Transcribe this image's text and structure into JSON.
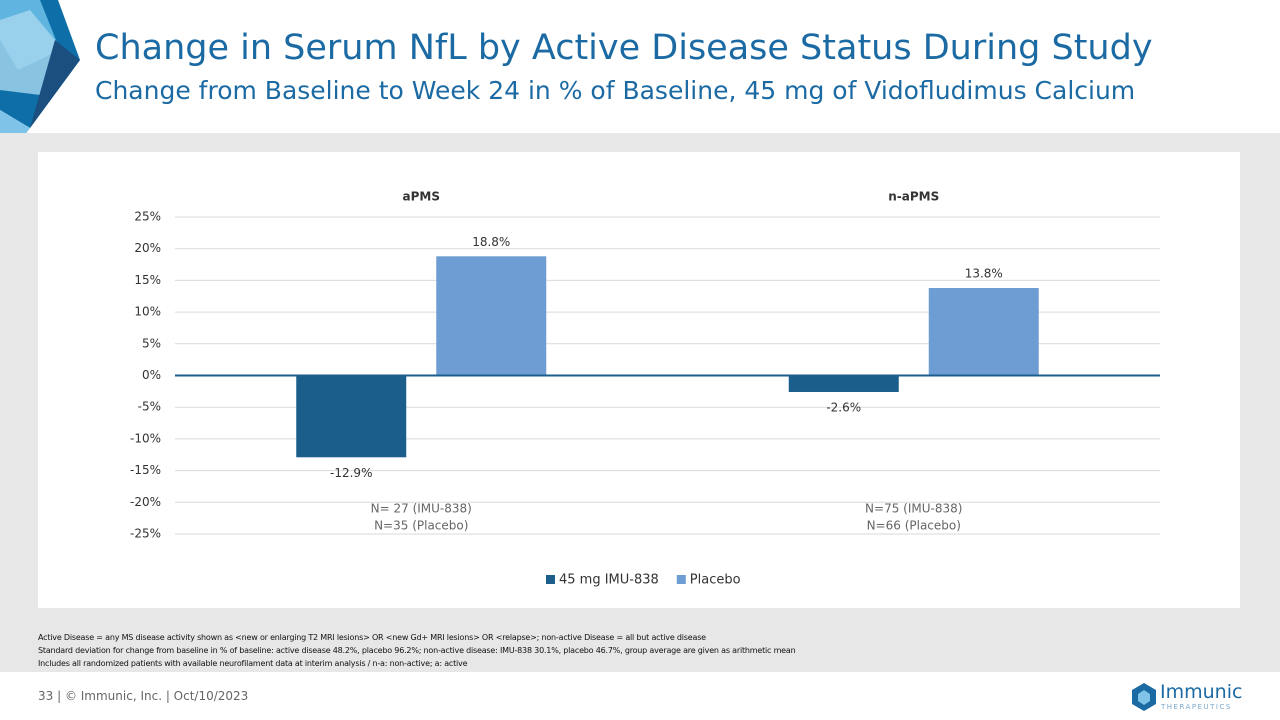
{
  "header": {
    "title": "Change in Serum NfL by Active Disease Status During Study",
    "subtitle": "Change from Baseline to Week 24 in % of Baseline, 45 mg of Vidofludimus Calcium"
  },
  "chart_data": {
    "type": "bar",
    "categories": [
      "aPMS",
      "n-aPMS"
    ],
    "series": [
      {
        "name": "45 mg IMU-838",
        "color": "#1b5e8c",
        "values": [
          -12.9,
          -2.6
        ],
        "value_labels": [
          "-12.9%",
          "-2.6%"
        ]
      },
      {
        "name": "Placebo",
        "color": "#6d9dd3",
        "values": [
          18.8,
          13.8
        ],
        "value_labels": [
          "18.8%",
          "13.8%"
        ]
      }
    ],
    "group_notes": [
      [
        "N= 27 (IMU-838)",
        "N=35 (Placebo)"
      ],
      [
        "N=75 (IMU-838)",
        "N=66 (Placebo)"
      ]
    ],
    "ylim": [
      -25,
      25
    ],
    "yticks": [
      {
        "value": -25,
        "label": "-25%"
      },
      {
        "value": -20,
        "label": "-20%"
      },
      {
        "value": -15,
        "label": "-15%"
      },
      {
        "value": -10,
        "label": "-10%"
      },
      {
        "value": -5,
        "label": "-5%"
      },
      {
        "value": 0,
        "label": "0%"
      },
      {
        "value": 5,
        "label": "5%"
      },
      {
        "value": 10,
        "label": "10%"
      },
      {
        "value": 15,
        "label": "15%"
      },
      {
        "value": 20,
        "label": "20%"
      },
      {
        "value": 25,
        "label": "25%"
      }
    ],
    "grid": true,
    "legend": "bottom"
  },
  "footnotes": [
    "Active Disease = any MS disease activity shown as <new or enlarging T2 MRI lesions> OR <new Gd+ MRI lesions> OR <relapse>; non-active Disease = all but active disease",
    "Standard deviation for change from baseline in % of baseline: active disease 48.2%, placebo 96.2%; non-active disease: IMU-838 30.1%, placebo 46.7%, group average are given as arithmetic mean",
    "Includes all randomized patients with available neurofilament data at interim analysis / n-a: non-active; a: active"
  ],
  "footer": "33  |  © Immunic, Inc.  | Oct/10/2023",
  "logo": {
    "name": "Immunic",
    "tagline": "THERAPEUTICS"
  }
}
